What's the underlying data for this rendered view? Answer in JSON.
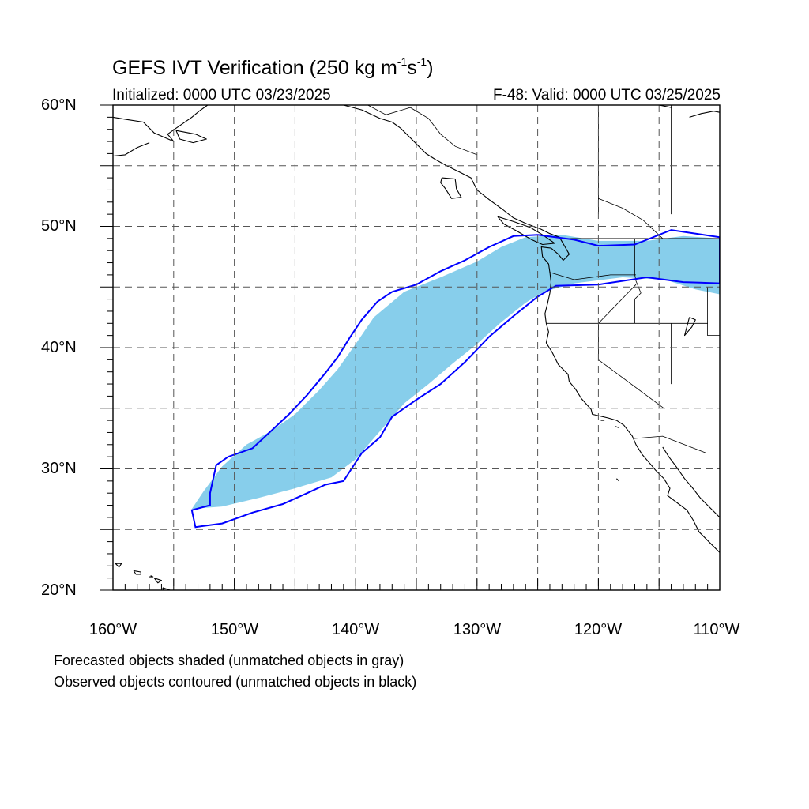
{
  "title": {
    "main": "GEFS IVT Verification (250 kg m",
    "exp1": "-1",
    "mid": "s",
    "exp2": "-1",
    "close": ")"
  },
  "initialized": "Initialized: 0000 UTC 03/23/2025",
  "valid": "F-48: Valid: 0000 UTC 03/25/2025",
  "axes": {
    "lat_labels": [
      "60°N",
      "50°N",
      "40°N",
      "30°N",
      "20°N"
    ],
    "lon_labels": [
      "160°W",
      "150°W",
      "140°W",
      "130°W",
      "120°W",
      "110°W"
    ],
    "lon_range": [
      -160,
      -110
    ],
    "lat_range": [
      20,
      60
    ],
    "grid": "dashed every 5 degrees"
  },
  "legend_notes": [
    "Forecasted objects shaded (unmatched objects in gray)",
    "Observed objects contoured (unmatched objects in black)"
  ],
  "colors": {
    "forecast_fill": "#87ceeb",
    "observed_contour": "#0000ff",
    "coastline": "#000000",
    "grid": "#555555"
  },
  "map_data": {
    "forecast_object": {
      "status": "matched",
      "style": "shaded",
      "polygon": [
        [
          -153.5,
          26.7
        ],
        [
          -151.0,
          26.9
        ],
        [
          -148.0,
          27.6
        ],
        [
          -145.0,
          28.4
        ],
        [
          -142.0,
          29.3
        ],
        [
          -140.0,
          30.8
        ],
        [
          -138.0,
          33.1
        ],
        [
          -136.0,
          35.4
        ],
        [
          -134.0,
          37.0
        ],
        [
          -132.0,
          38.7
        ],
        [
          -130.0,
          40.3
        ],
        [
          -128.0,
          42.1
        ],
        [
          -126.0,
          43.7
        ],
        [
          -124.5,
          44.6
        ],
        [
          -122.0,
          45.3
        ],
        [
          -118.0,
          45.8
        ],
        [
          -114.5,
          45.6
        ],
        [
          -112.0,
          44.8
        ],
        [
          -110.0,
          44.4
        ],
        [
          -110.0,
          49.0
        ],
        [
          -113.0,
          49.2
        ],
        [
          -116.0,
          48.8
        ],
        [
          -120.0,
          48.8
        ],
        [
          -123.0,
          49.3
        ],
        [
          -126.0,
          49.1
        ],
        [
          -128.0,
          48.3
        ],
        [
          -130.0,
          47.1
        ],
        [
          -133.0,
          45.8
        ],
        [
          -136.0,
          44.6
        ],
        [
          -138.5,
          42.5
        ],
        [
          -140.0,
          40.3
        ],
        [
          -141.5,
          38.2
        ],
        [
          -143.0,
          36.5
        ],
        [
          -145.0,
          34.5
        ],
        [
          -147.0,
          33.1
        ],
        [
          -149.0,
          32.0
        ],
        [
          -151.0,
          30.2
        ],
        [
          -152.5,
          28.2
        ]
      ]
    },
    "observed_object": {
      "status": "matched",
      "style": "contour",
      "polygon": [
        [
          -153.2,
          25.2
        ],
        [
          -151.0,
          25.5
        ],
        [
          -148.5,
          26.4
        ],
        [
          -146.0,
          27.1
        ],
        [
          -144.0,
          28.0
        ],
        [
          -142.5,
          28.7
        ],
        [
          -141.0,
          29.0
        ],
        [
          -139.5,
          31.3
        ],
        [
          -138.0,
          32.6
        ],
        [
          -137.0,
          34.3
        ],
        [
          -135.0,
          35.7
        ],
        [
          -133.0,
          37.0
        ],
        [
          -131.0,
          38.8
        ],
        [
          -129.0,
          40.9
        ],
        [
          -127.0,
          42.6
        ],
        [
          -125.0,
          44.2
        ],
        [
          -123.5,
          45.1
        ],
        [
          -120.0,
          45.2
        ],
        [
          -116.0,
          45.8
        ],
        [
          -113.0,
          45.4
        ],
        [
          -110.0,
          45.3
        ],
        [
          -110.0,
          49.1
        ],
        [
          -114.0,
          49.7
        ],
        [
          -117.0,
          48.5
        ],
        [
          -120.0,
          48.4
        ],
        [
          -122.0,
          48.9
        ],
        [
          -125.0,
          49.3
        ],
        [
          -127.0,
          49.2
        ],
        [
          -129.0,
          48.3
        ],
        [
          -131.0,
          47.2
        ],
        [
          -133.0,
          46.3
        ],
        [
          -135.0,
          45.2
        ],
        [
          -137.0,
          44.6
        ],
        [
          -138.2,
          43.8
        ],
        [
          -139.5,
          42.3
        ],
        [
          -140.5,
          40.8
        ],
        [
          -141.5,
          39.2
        ],
        [
          -142.5,
          37.9
        ],
        [
          -144.0,
          36.1
        ],
        [
          -145.5,
          34.5
        ],
        [
          -147.0,
          33.1
        ],
        [
          -148.5,
          31.7
        ],
        [
          -150.5,
          31.0
        ],
        [
          -151.5,
          30.3
        ],
        [
          -152.0,
          28.0
        ],
        [
          -152.0,
          27.0
        ],
        [
          -153.5,
          26.6
        ]
      ]
    },
    "coastlines": [
      [
        [
          -141.0,
          60.0
        ],
        [
          -139.5,
          59.6
        ],
        [
          -138.0,
          58.9
        ],
        [
          -137.0,
          58.6
        ],
        [
          -136.3,
          58.1
        ],
        [
          -135.5,
          57.3
        ],
        [
          -134.8,
          56.6
        ],
        [
          -134.2,
          56.0
        ],
        [
          -133.4,
          55.5
        ],
        [
          -132.5,
          55.0
        ],
        [
          -131.5,
          54.5
        ],
        [
          -130.5,
          54.0
        ],
        [
          -130.0,
          53.0
        ],
        [
          -129.0,
          52.2
        ],
        [
          -127.9,
          51.4
        ],
        [
          -127.0,
          50.7
        ],
        [
          -125.9,
          50.2
        ],
        [
          -124.8,
          49.8
        ],
        [
          -124.0,
          49.4
        ],
        [
          -123.2,
          49.1
        ],
        [
          -122.8,
          48.4
        ],
        [
          -122.4,
          47.7
        ],
        [
          -122.9,
          47.2
        ],
        [
          -123.3,
          47.7
        ],
        [
          -123.9,
          48.2
        ],
        [
          -124.7,
          48.3
        ],
        [
          -124.6,
          47.5
        ],
        [
          -124.1,
          46.9
        ],
        [
          -124.0,
          46.2
        ],
        [
          -123.9,
          45.4
        ],
        [
          -124.0,
          44.5
        ],
        [
          -124.2,
          43.6
        ],
        [
          -124.4,
          42.8
        ],
        [
          -124.3,
          42.0
        ],
        [
          -124.1,
          41.3
        ],
        [
          -124.3,
          40.4
        ],
        [
          -123.8,
          39.6
        ],
        [
          -123.3,
          38.6
        ],
        [
          -122.5,
          37.8
        ],
        [
          -122.4,
          37.2
        ],
        [
          -121.9,
          36.6
        ],
        [
          -121.4,
          35.8
        ],
        [
          -120.6,
          34.9
        ],
        [
          -120.5,
          34.5
        ],
        [
          -119.2,
          34.2
        ],
        [
          -118.5,
          34.0
        ],
        [
          -117.9,
          33.6
        ],
        [
          -117.2,
          32.7
        ],
        [
          -116.9,
          32.0
        ],
        [
          -116.4,
          31.2
        ],
        [
          -115.8,
          30.5
        ],
        [
          -115.3,
          29.9
        ],
        [
          -114.6,
          29.2
        ],
        [
          -114.1,
          28.4
        ],
        [
          -114.3,
          27.8
        ],
        [
          -113.5,
          27.2
        ],
        [
          -112.7,
          26.6
        ],
        [
          -112.2,
          25.8
        ],
        [
          -111.7,
          24.8
        ],
        [
          -110.7,
          23.8
        ],
        [
          -110.0,
          23.1
        ]
      ],
      [
        [
          -114.7,
          31.8
        ],
        [
          -114.2,
          31.0
        ],
        [
          -113.6,
          30.2
        ],
        [
          -112.9,
          29.2
        ],
        [
          -112.3,
          28.5
        ],
        [
          -111.6,
          27.6
        ],
        [
          -110.8,
          26.8
        ],
        [
          -110.0,
          26.0
        ]
      ],
      [
        [
          -128.3,
          50.8
        ],
        [
          -127.0,
          50.4
        ],
        [
          -125.6,
          49.9
        ],
        [
          -124.6,
          49.3
        ],
        [
          -123.6,
          48.6
        ],
        [
          -124.6,
          48.5
        ],
        [
          -125.5,
          48.9
        ],
        [
          -126.7,
          49.6
        ],
        [
          -127.8,
          50.2
        ],
        [
          -128.3,
          50.8
        ]
      ],
      [
        [
          -132.9,
          54.0
        ],
        [
          -131.8,
          53.9
        ],
        [
          -131.7,
          53.1
        ],
        [
          -131.3,
          52.4
        ],
        [
          -132.1,
          52.3
        ],
        [
          -132.6,
          53.1
        ],
        [
          -133.0,
          53.6
        ],
        [
          -132.9,
          54.0
        ]
      ],
      [
        [
          -160.0,
          59.0
        ],
        [
          -158.8,
          58.8
        ],
        [
          -157.5,
          58.6
        ],
        [
          -156.6,
          57.7
        ],
        [
          -155.0,
          57.0
        ],
        [
          -155.5,
          57.6
        ],
        [
          -154.5,
          58.3
        ],
        [
          -153.5,
          59.0
        ],
        [
          -152.9,
          59.5
        ],
        [
          -152.2,
          60.0
        ]
      ],
      [
        [
          -160.0,
          55.8
        ],
        [
          -159.0,
          55.9
        ],
        [
          -158.0,
          56.5
        ],
        [
          -157.0,
          56.9
        ]
      ],
      [
        [
          -154.8,
          57.9
        ],
        [
          -153.2,
          57.6
        ],
        [
          -152.3,
          57.2
        ],
        [
          -153.4,
          56.9
        ],
        [
          -154.5,
          57.2
        ],
        [
          -154.8,
          57.9
        ]
      ],
      [
        [
          -115.0,
          60.0
        ],
        [
          -114.0,
          59.8
        ]
      ],
      [
        [
          -112.5,
          59.0
        ],
        [
          -111.5,
          59.3
        ],
        [
          -110.5,
          59.5
        ],
        [
          -110.0,
          59.4
        ]
      ],
      [
        [
          -159.8,
          22.2
        ],
        [
          -159.3,
          22.2
        ],
        [
          -159.5,
          21.9
        ],
        [
          -159.8,
          22.2
        ]
      ],
      [
        [
          -158.3,
          21.6
        ],
        [
          -157.7,
          21.5
        ],
        [
          -157.7,
          21.3
        ],
        [
          -158.1,
          21.3
        ],
        [
          -158.3,
          21.6
        ]
      ],
      [
        [
          -156.9,
          21.2
        ],
        [
          -156.7,
          21.1
        ],
        [
          -157.0,
          21.1
        ]
      ],
      [
        [
          -156.6,
          21.0
        ],
        [
          -156.0,
          20.8
        ],
        [
          -156.3,
          20.6
        ],
        [
          -156.6,
          21.0
        ]
      ],
      [
        [
          -155.9,
          20.2
        ],
        [
          -155.0,
          19.9
        ],
        [
          -155.8,
          19.7
        ],
        [
          -155.9,
          20.2
        ]
      ],
      [
        [
          -118.6,
          33.5
        ],
        [
          -118.3,
          33.4
        ]
      ],
      [
        [
          -119.8,
          34.0
        ],
        [
          -119.5,
          34.0
        ]
      ],
      [
        [
          -118.5,
          29.2
        ],
        [
          -118.3,
          29.0
        ]
      ],
      [
        [
          -112.5,
          42.5
        ],
        [
          -112.0,
          42.3
        ],
        [
          -112.3,
          41.7
        ],
        [
          -112.9,
          41.0
        ],
        [
          -112.5,
          42.5
        ]
      ]
    ],
    "borders": [
      [
        [
          -123.2,
          49.0
        ],
        [
          -110.0,
          49.0
        ]
      ],
      [
        [
          -124.2,
          42.0
        ],
        [
          -111.0,
          42.0
        ]
      ],
      [
        [
          -120.0,
          42.0
        ],
        [
          -120.0,
          39.0
        ],
        [
          -114.6,
          35.0
        ]
      ],
      [
        [
          -117.0,
          49.0
        ],
        [
          -117.0,
          46.0
        ],
        [
          -116.9,
          45.5
        ],
        [
          -116.5,
          44.5
        ],
        [
          -117.0,
          44.0
        ],
        [
          -117.0,
          42.0
        ]
      ],
      [
        [
          -114.0,
          42.0
        ],
        [
          -114.0,
          37.0
        ]
      ],
      [
        [
          -111.0,
          45.0
        ],
        [
          -111.0,
          42.0
        ],
        [
          -111.0,
          41.0
        ],
        [
          -110.0,
          41.0
        ]
      ],
      [
        [
          -117.1,
          32.5
        ],
        [
          -114.7,
          32.7
        ],
        [
          -111.1,
          31.3
        ],
        [
          -110.0,
          31.3
        ]
      ],
      [
        [
          -120.0,
          60.0
        ],
        [
          -120.0,
          51.0
        ]
      ],
      [
        [
          -114.0,
          60.0
        ],
        [
          -114.0,
          51.0
        ]
      ],
      [
        [
          -124.0,
          46.2
        ],
        [
          -122.0,
          45.6
        ],
        [
          -119.0,
          46.0
        ],
        [
          -116.9,
          46.0
        ]
      ],
      [
        [
          -120.0,
          52.3
        ],
        [
          -118.0,
          51.5
        ],
        [
          -116.3,
          50.5
        ],
        [
          -114.7,
          49.0
        ]
      ],
      [
        [
          -139.0,
          60.0
        ],
        [
          -137.5,
          59.2
        ],
        [
          -135.5,
          59.8
        ],
        [
          -134.0,
          58.9
        ],
        [
          -133.0,
          57.6
        ],
        [
          -131.8,
          56.6
        ],
        [
          -130.0,
          55.9
        ]
      ],
      [
        [
          -120.0,
          42.0
        ],
        [
          -116.9,
          45.2
        ]
      ]
    ]
  }
}
